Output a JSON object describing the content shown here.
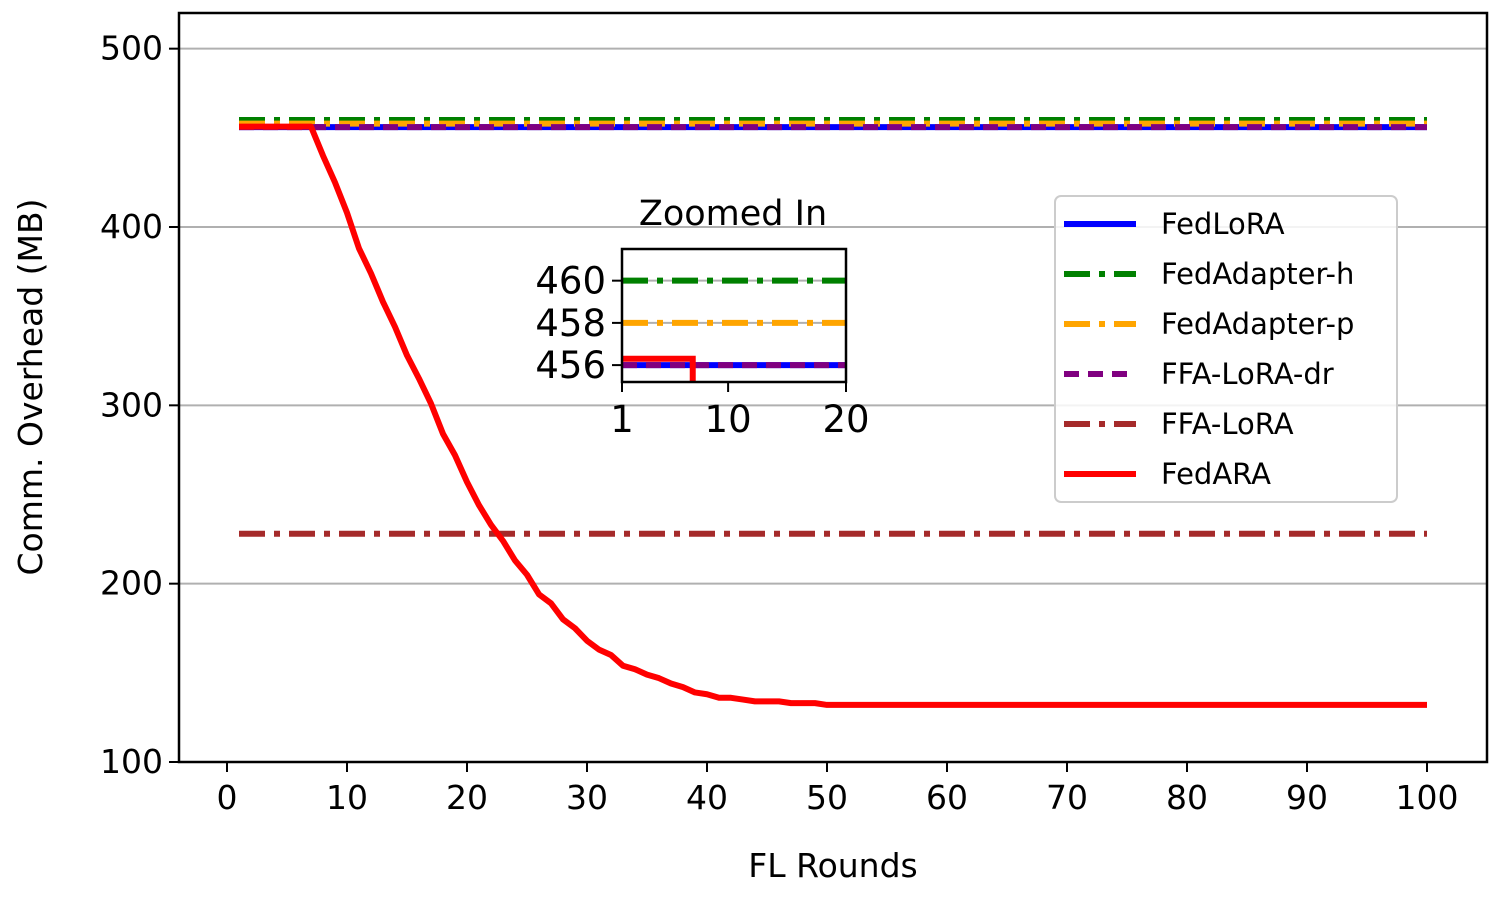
{
  "chart_data": {
    "type": "line",
    "title": "",
    "xlabel": "FL Rounds",
    "ylabel": "Comm. Overhead (MB)",
    "xlim": [
      -4,
      105
    ],
    "ylim": [
      100,
      520
    ],
    "xticks": [
      0,
      10,
      20,
      30,
      40,
      50,
      60,
      70,
      80,
      90,
      100
    ],
    "yticks": [
      100,
      200,
      300,
      400,
      500
    ],
    "grid": "horizontal",
    "legend_position": "right",
    "series": [
      {
        "name": "FedLoRA",
        "color": "#0000ff",
        "style": "solid",
        "x": [
          1,
          100
        ],
        "y": [
          456.0,
          456.0
        ]
      },
      {
        "name": "FedAdapter-h",
        "color": "#008000",
        "style": "dashdot",
        "x": [
          1,
          100
        ],
        "y": [
          460.0,
          460.0
        ]
      },
      {
        "name": "FedAdapter-p",
        "color": "#ffa500",
        "style": "dashdot",
        "x": [
          1,
          100
        ],
        "y": [
          458.0,
          458.0
        ]
      },
      {
        "name": "FFA-LoRA-dr",
        "color": "#800080",
        "style": "dashed",
        "x": [
          1,
          100
        ],
        "y": [
          456.0,
          456.0
        ]
      },
      {
        "name": "FFA-LoRA",
        "color": "#a52a2a",
        "style": "dashdot",
        "x": [
          1,
          100
        ],
        "y": [
          228.0,
          228.0
        ]
      },
      {
        "name": "FedARA",
        "color": "#ff0000",
        "style": "solid",
        "x": [
          1,
          2,
          3,
          4,
          5,
          6,
          7,
          8,
          9,
          10,
          11,
          12,
          13,
          14,
          15,
          16,
          17,
          18,
          19,
          20,
          21,
          22,
          23,
          24,
          25,
          26,
          27,
          28,
          29,
          30,
          31,
          32,
          33,
          34,
          35,
          36,
          37,
          38,
          39,
          40,
          41,
          42,
          43,
          44,
          45,
          46,
          47,
          48,
          49,
          50,
          51,
          100
        ],
        "y": [
          456.3,
          456.3,
          456.3,
          456.3,
          456.3,
          456.3,
          456.3,
          440,
          425,
          408,
          388,
          374,
          358,
          344,
          328,
          315,
          301,
          284,
          272,
          257,
          244,
          233,
          224,
          213,
          205,
          194,
          189,
          180,
          175,
          168,
          163,
          160,
          154,
          152,
          149,
          147,
          144,
          142,
          139,
          138,
          136,
          136,
          135,
          134,
          134,
          134,
          133,
          133,
          133,
          132,
          132,
          132
        ]
      }
    ],
    "inset": {
      "title": "Zoomed In",
      "xlim": [
        1,
        20
      ],
      "ylim": [
        455.2,
        461.5
      ],
      "xticks": [
        1,
        10,
        20
      ],
      "yticks": [
        456,
        458,
        460
      ],
      "fedara_drop_round": 7
    }
  }
}
